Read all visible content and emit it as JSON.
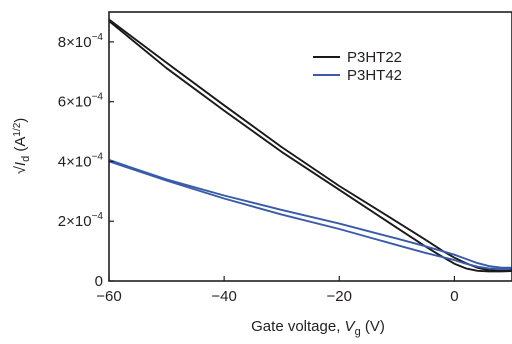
{
  "chart_data": {
    "type": "line",
    "xlabel": {
      "main": "Gate voltage, ",
      "var": "V",
      "sub": "g",
      "unit": " (V)"
    },
    "ylabel": {
      "pre": "√",
      "var": "I",
      "sub": "d",
      "unit_pre": " (A",
      "unit_sup": "1/2",
      "unit_post": ")"
    },
    "xlim": [
      -60,
      10
    ],
    "ylim": [
      0,
      0.0009
    ],
    "x_ticks": [
      {
        "value": -60,
        "label": "−60"
      },
      {
        "value": -40,
        "label": "−40"
      },
      {
        "value": -20,
        "label": "−20"
      },
      {
        "value": 0,
        "label": "0"
      }
    ],
    "y_ticks": [
      {
        "value": 0,
        "mantissa": "0",
        "exponent": ""
      },
      {
        "value": 0.0002,
        "mantissa": "2×10",
        "exponent": "−4"
      },
      {
        "value": 0.0004,
        "mantissa": "4×10",
        "exponent": "−4"
      },
      {
        "value": 0.0006,
        "mantissa": "6×10",
        "exponent": "−4"
      },
      {
        "value": 0.0008,
        "mantissa": "8×10",
        "exponent": "−4"
      }
    ],
    "grid": false,
    "legend_position": "top-right",
    "series": [
      {
        "name": "P3HT22",
        "color": "#1a1a1a",
        "sweeps": [
          {
            "x": [
              -60,
              -50,
              -40,
              -30,
              -20,
              -10,
              -5,
              -2,
              0,
              2,
              4,
              6,
              8,
              10
            ],
            "y": [
              0.000875,
              0.00073,
              0.000588,
              0.000448,
              0.000318,
              0.000198,
              0.000138,
              0.0001,
              7.8e-05,
              6e-05,
              4.4e-05,
              3.6e-05,
              3.4e-05,
              3.5e-05
            ]
          },
          {
            "x": [
              -60,
              -50,
              -40,
              -30,
              -20,
              -10,
              -5,
              -2,
              0,
              2,
              4,
              6,
              8,
              10
            ],
            "y": [
              0.00087,
              0.000712,
              0.00057,
              0.000432,
              0.000305,
              0.000178,
              0.000115,
              8e-05,
              5.8e-05,
              4.2e-05,
              3.4e-05,
              3.2e-05,
              3.2e-05,
              3.3e-05
            ]
          }
        ]
      },
      {
        "name": "P3HT42",
        "color": "#3a5ba9",
        "sweeps": [
          {
            "x": [
              -60,
              -55,
              -50,
              -40,
              -30,
              -20,
              -10,
              -5,
              0,
              2,
              4,
              6,
              8,
              10
            ],
            "y": [
              0.000405,
              0.000372,
              0.00034,
              0.000286,
              0.000238,
              0.000192,
              0.000142,
              0.000116,
              8.8e-05,
              7.4e-05,
              6e-05,
              5e-05,
              4.5e-05,
              4.4e-05
            ]
          },
          {
            "x": [
              -60,
              -55,
              -50,
              -40,
              -30,
              -20,
              -10,
              -5,
              0,
              2,
              4,
              6,
              8,
              10
            ],
            "y": [
              0.0004,
              0.000368,
              0.000336,
              0.000276,
              0.000222,
              0.000174,
              0.00012,
              9.4e-05,
              7e-05,
              5.8e-05,
              4.8e-05,
              4.2e-05,
              4e-05,
              4.1e-05
            ]
          }
        ]
      }
    ]
  }
}
